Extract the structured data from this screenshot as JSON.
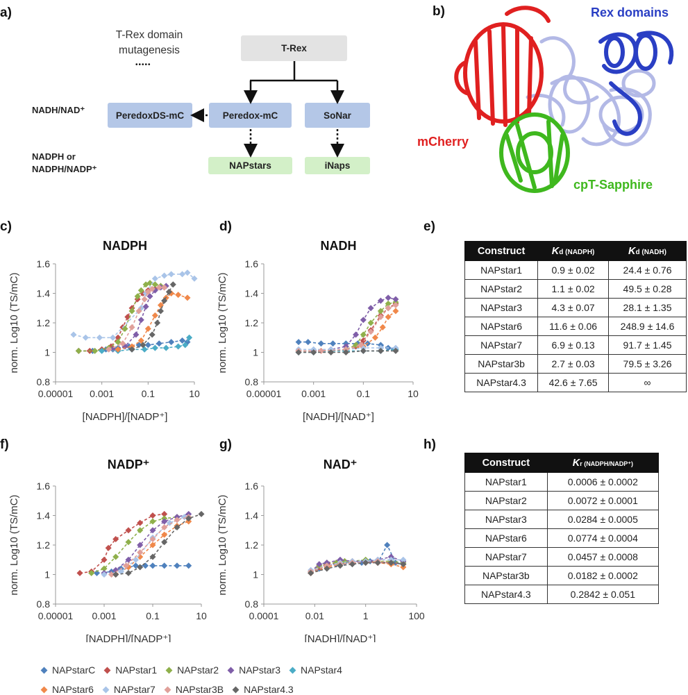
{
  "panels": {
    "a": "a)",
    "b": "b)",
    "c": "c)",
    "d": "d)",
    "e": "e)",
    "f": "f)",
    "g": "g)",
    "h": "h)"
  },
  "flow": {
    "mutagenesis_line1": "T-Rex domain",
    "mutagenesis_line2": "mutagenesis",
    "dots": "•••••",
    "trex": "T-Rex",
    "peredoxds": "PeredoxDS-mC",
    "peredox": "Peredox-mC",
    "sonar": "SoNar",
    "napstars": "NAPstars",
    "inaps": "iNaps",
    "label_nadh": "NADH/NAD⁺",
    "label_nadph_1": "NADPH or",
    "label_nadph_2": "NADPH/NADP⁺"
  },
  "structure": {
    "rex_domains": "Rex domains",
    "mcherry": "mCherry",
    "cpt_sapphire": "cpT-Sapphire",
    "colors": {
      "rex": "#2a3fc4",
      "rex_light": "#b3b9e6",
      "mcherry": "#e02020",
      "sapphire": "#3fb81e"
    }
  },
  "series_colors": {
    "NAPstarC": "#4f81bd",
    "NAPstar1": "#c0504d",
    "NAPstar2": "#8fb04b",
    "NAPstar3": "#7f5ea8",
    "NAPstar4": "#4bacc6",
    "NAPstar6": "#f0884a",
    "NAPstar7": "#a9c4e8",
    "NAPstar3B": "#e0a09a",
    "NAPstar4.3": "#666666"
  },
  "legend": {
    "row1": [
      "NAPstarC",
      "NAPstar1",
      "NAPstar2",
      "NAPstar3",
      "NAPstar4"
    ],
    "row2": [
      "NAPstar6",
      "NAPstar7",
      "NAPstar3B",
      "NAPstar4.3"
    ]
  },
  "chart_data": [
    {
      "id": "c",
      "type": "scatter",
      "title": "NADPH",
      "xlabel": "[NADPH]/[NADP⁺]",
      "ylabel": "norm. Log10 (TS/mC)",
      "xscale": "log",
      "xlim": [
        1e-05,
        10
      ],
      "ylim": [
        0.8,
        1.6
      ],
      "xticks": [
        "0.00001",
        "0.001",
        "0.1",
        "10"
      ],
      "yticks": [
        "0.8",
        "1",
        "1.2",
        "1.4",
        "1.6"
      ],
      "series": [
        {
          "name": "NAPstarC",
          "x": [
            0.0001,
            0.0004,
            0.0015,
            0.005,
            0.015,
            0.04,
            0.1,
            0.3,
            1,
            3,
            5
          ],
          "y": [
            1.01,
            1.01,
            1.02,
            1.03,
            1.04,
            1.05,
            1.05,
            1.06,
            1.07,
            1.08,
            1.07
          ]
        },
        {
          "name": "NAPstar1",
          "x": [
            0.0001,
            0.0003,
            0.001,
            0.0025,
            0.005,
            0.008,
            0.013,
            0.02,
            0.035,
            0.06,
            0.1,
            0.2,
            0.5
          ],
          "y": [
            1.01,
            1.01,
            1.02,
            1.04,
            1.1,
            1.17,
            1.24,
            1.3,
            1.36,
            1.4,
            1.42,
            1.43,
            1.44
          ]
        },
        {
          "name": "NAPstar2",
          "x": [
            0.0001,
            0.0005,
            0.002,
            0.005,
            0.01,
            0.02,
            0.035,
            0.05,
            0.08,
            0.12,
            0.2,
            0.35
          ],
          "y": [
            1.01,
            1.01,
            1.03,
            1.07,
            1.16,
            1.28,
            1.38,
            1.42,
            1.46,
            1.47,
            1.46,
            1.45
          ]
        },
        {
          "name": "NAPstar3",
          "x": [
            0.003,
            0.01,
            0.03,
            0.05,
            0.08,
            0.12,
            0.2,
            0.35,
            0.6
          ],
          "y": [
            1.02,
            1.04,
            1.12,
            1.22,
            1.31,
            1.38,
            1.42,
            1.44,
            1.45
          ]
        },
        {
          "name": "NAPstar4",
          "x": [
            0.001,
            0.005,
            0.02,
            0.07,
            0.2,
            0.6,
            2,
            4,
            6
          ],
          "y": [
            1.01,
            1.01,
            1.02,
            1.02,
            1.03,
            1.03,
            1.04,
            1.05,
            1.1
          ]
        },
        {
          "name": "NAPstar6",
          "x": [
            0.005,
            0.02,
            0.05,
            0.1,
            0.2,
            0.35,
            0.6,
            1,
            2,
            5
          ],
          "y": [
            1.02,
            1.04,
            1.08,
            1.16,
            1.25,
            1.32,
            1.37,
            1.4,
            1.39,
            1.37
          ]
        },
        {
          "name": "NAPstar7",
          "x": [
            6e-05,
            0.0002,
            0.0008,
            0.003,
            0.05,
            0.08,
            0.2,
            0.5,
            1,
            3,
            5,
            10
          ],
          "y": [
            1.12,
            1.1,
            1.1,
            1.1,
            1.3,
            1.4,
            1.5,
            1.52,
            1.53,
            1.53,
            1.54,
            1.5
          ]
        },
        {
          "name": "NAPstar3B",
          "x": [
            0.002,
            0.008,
            0.02,
            0.04,
            0.07,
            0.1,
            0.15,
            0.3,
            0.5
          ],
          "y": [
            1.02,
            1.06,
            1.17,
            1.28,
            1.36,
            1.41,
            1.43,
            1.44,
            1.44
          ]
        },
        {
          "name": "NAPstar4.3",
          "x": [
            0.02,
            0.06,
            0.15,
            0.25,
            0.35,
            0.5,
            0.8,
            1.2
          ],
          "y": [
            1.02,
            1.05,
            1.12,
            1.2,
            1.28,
            1.35,
            1.41,
            1.46
          ]
        }
      ]
    },
    {
      "id": "d",
      "type": "scatter",
      "title": "NADH",
      "xlabel": "[NADH]/[NAD⁺]",
      "ylabel": "norm. Log10 (TS/mC)",
      "xscale": "log",
      "xlim": [
        1e-05,
        10
      ],
      "ylim": [
        0.8,
        1.6
      ],
      "xticks": [
        "0.00001",
        "0.001",
        "0.1",
        "10"
      ],
      "yticks": [
        "0.8",
        "1",
        "1.2",
        "1.4",
        "1.6"
      ],
      "series": [
        {
          "name": "NAPstarC",
          "x": [
            0.00025,
            0.0006,
            0.002,
            0.006,
            0.02,
            0.06,
            0.15,
            0.5,
            1,
            2
          ],
          "y": [
            1.07,
            1.07,
            1.06,
            1.06,
            1.06,
            1.06,
            1.06,
            1.05,
            1.03,
            1.02
          ]
        },
        {
          "name": "NAPstar1",
          "x": [
            0.00025,
            0.001,
            0.005,
            0.02,
            0.05,
            0.1,
            0.2,
            0.5,
            1,
            2
          ],
          "y": [
            1.01,
            1.01,
            1.01,
            1.02,
            1.04,
            1.08,
            1.15,
            1.25,
            1.3,
            1.33
          ]
        },
        {
          "name": "NAPstar2",
          "x": [
            0.00025,
            0.001,
            0.005,
            0.02,
            0.05,
            0.1,
            0.2,
            0.5,
            1,
            2
          ],
          "y": [
            1.01,
            1.01,
            1.01,
            1.02,
            1.05,
            1.12,
            1.2,
            1.28,
            1.33,
            1.34
          ]
        },
        {
          "name": "NAPstar3",
          "x": [
            0.00025,
            0.001,
            0.005,
            0.02,
            0.05,
            0.1,
            0.2,
            0.5,
            1,
            2
          ],
          "y": [
            1.01,
            1.01,
            1.02,
            1.04,
            1.12,
            1.22,
            1.3,
            1.35,
            1.37,
            1.36
          ]
        },
        {
          "name": "NAPstar4",
          "x": [
            0.00025,
            0.001,
            0.005,
            0.02,
            0.1,
            0.5,
            2
          ],
          "y": [
            1.0,
            1.0,
            1.01,
            1.01,
            1.01,
            1.01,
            1.02
          ]
        },
        {
          "name": "NAPstar6",
          "x": [
            0.00025,
            0.002,
            0.02,
            0.1,
            0.3,
            0.6,
            1,
            2
          ],
          "y": [
            1.01,
            1.01,
            1.02,
            1.04,
            1.1,
            1.17,
            1.24,
            1.28
          ]
        },
        {
          "name": "NAPstar7",
          "x": [
            0.00025,
            0.001,
            0.005,
            0.02,
            0.1,
            0.5,
            2
          ],
          "y": [
            1.02,
            1.02,
            1.02,
            1.02,
            1.03,
            1.03,
            1.03
          ]
        },
        {
          "name": "NAPstar3B",
          "x": [
            0.00025,
            0.002,
            0.02,
            0.08,
            0.2,
            0.5,
            1,
            2
          ],
          "y": [
            1.01,
            1.01,
            1.02,
            1.05,
            1.14,
            1.24,
            1.3,
            1.32
          ]
        },
        {
          "name": "NAPstar4.3",
          "x": [
            0.00025,
            0.001,
            0.005,
            0.02,
            0.1,
            0.5,
            2
          ],
          "y": [
            1.0,
            1.0,
            1.0,
            1.0,
            1.01,
            1.01,
            1.01
          ]
        }
      ]
    },
    {
      "id": "f",
      "type": "scatter",
      "title": "NADP⁺",
      "xlabel": "[NADPH]/[NADP⁺]",
      "ylabel": "norm. Log10 (TS/mC)",
      "xscale": "log",
      "xlim": [
        1e-05,
        10
      ],
      "ylim": [
        0.8,
        1.6
      ],
      "xticks": [
        "0.00001",
        "0.001",
        "0.1",
        "10"
      ],
      "yticks": [
        "0.8",
        "1",
        "1.2",
        "1.4",
        "1.6"
      ],
      "series": [
        {
          "name": "NAPstarC",
          "x": [
            0.0005,
            0.002,
            0.005,
            0.01,
            0.02,
            0.05,
            0.1,
            0.3,
            1,
            3
          ],
          "y": [
            1.01,
            1.02,
            1.04,
            1.05,
            1.06,
            1.06,
            1.06,
            1.06,
            1.06,
            1.06
          ]
        },
        {
          "name": "NAPstar1",
          "x": [
            0.0001,
            0.0003,
            0.001,
            0.0015,
            0.003,
            0.01,
            0.03,
            0.1,
            0.3
          ],
          "y": [
            1.01,
            1.02,
            1.1,
            1.18,
            1.24,
            1.3,
            1.35,
            1.4,
            1.41
          ]
        },
        {
          "name": "NAPstar2",
          "x": [
            0.0003,
            0.001,
            0.003,
            0.01,
            0.03,
            0.1,
            0.3,
            1
          ],
          "y": [
            1.01,
            1.04,
            1.12,
            1.22,
            1.3,
            1.36,
            1.38,
            1.39
          ]
        },
        {
          "name": "NAPstar3",
          "x": [
            0.001,
            0.003,
            0.01,
            0.03,
            0.1,
            0.3,
            1,
            3
          ],
          "y": [
            1.01,
            1.03,
            1.1,
            1.2,
            1.3,
            1.36,
            1.39,
            1.41
          ]
        },
        {
          "name": "NAPstar6",
          "x": [
            0.003,
            0.01,
            0.03,
            0.1,
            0.3,
            1,
            3
          ],
          "y": [
            1.0,
            1.05,
            1.12,
            1.2,
            1.27,
            1.33,
            1.36
          ]
        },
        {
          "name": "NAPstar7",
          "x": [
            0.001,
            0.005,
            0.02,
            0.1,
            0.5,
            2
          ],
          "y": [
            1.0,
            1.02,
            1.1,
            1.25,
            1.35,
            1.39
          ]
        },
        {
          "name": "NAPstar3B",
          "x": [
            0.002,
            0.008,
            0.03,
            0.1,
            0.3,
            1,
            3
          ],
          "y": [
            1.0,
            1.06,
            1.15,
            1.24,
            1.32,
            1.37,
            1.39
          ]
        },
        {
          "name": "NAPstar4.3",
          "x": [
            0.003,
            0.01,
            0.03,
            0.1,
            0.3,
            1,
            3,
            10
          ],
          "y": [
            1.0,
            1.01,
            1.05,
            1.12,
            1.22,
            1.32,
            1.38,
            1.41
          ]
        }
      ]
    },
    {
      "id": "g",
      "type": "scatter",
      "title": "NAD⁺",
      "xlabel": "[NADH]/[NAD⁺]",
      "ylabel": "norm. Log10 (TS/mC)",
      "xscale": "log",
      "xlim": [
        0.0001,
        100
      ],
      "ylim": [
        0.8,
        1.6
      ],
      "xticks": [
        "0.0001",
        "0.01",
        "1",
        "100"
      ],
      "yticks": [
        "0.8",
        "1",
        "1.2",
        "1.4",
        "1.6"
      ],
      "series": [
        {
          "name": "NAPstarC",
          "x": [
            0.007,
            0.015,
            0.03,
            0.07,
            0.15,
            0.3,
            0.7,
            1.5,
            3,
            7,
            15,
            30
          ],
          "y": [
            1.01,
            1.04,
            1.06,
            1.07,
            1.08,
            1.08,
            1.08,
            1.09,
            1.08,
            1.2,
            1.08,
            1.07
          ]
        },
        {
          "name": "NAPstar1",
          "x": [
            0.007,
            0.015,
            0.03,
            0.07,
            0.15,
            0.3,
            1,
            3,
            10,
            30
          ],
          "y": [
            1.01,
            1.05,
            1.07,
            1.08,
            1.09,
            1.09,
            1.09,
            1.08,
            1.08,
            1.07
          ]
        },
        {
          "name": "NAPstar2",
          "x": [
            0.007,
            0.015,
            0.03,
            0.07,
            0.15,
            0.3,
            1,
            3,
            10,
            30
          ],
          "y": [
            1.02,
            1.06,
            1.08,
            1.08,
            1.09,
            1.09,
            1.1,
            1.09,
            1.09,
            1.08
          ]
        },
        {
          "name": "NAPstar3",
          "x": [
            0.007,
            0.015,
            0.03,
            0.1,
            0.3,
            1,
            3,
            10,
            30
          ],
          "y": [
            1.02,
            1.07,
            1.08,
            1.1,
            1.09,
            1.09,
            1.1,
            1.12,
            1.09
          ]
        },
        {
          "name": "NAPstar6",
          "x": [
            0.007,
            0.03,
            0.1,
            0.3,
            1,
            3,
            10,
            30
          ],
          "y": [
            1.01,
            1.05,
            1.07,
            1.08,
            1.08,
            1.08,
            1.07,
            1.05
          ]
        },
        {
          "name": "NAPstar7",
          "x": [
            0.007,
            0.03,
            0.1,
            0.3,
            1,
            3,
            10,
            30
          ],
          "y": [
            1.03,
            1.06,
            1.08,
            1.09,
            1.09,
            1.1,
            1.1,
            1.1
          ]
        },
        {
          "name": "NAPstar3B",
          "x": [
            0.007,
            0.03,
            0.1,
            0.3,
            1,
            3,
            10,
            30
          ],
          "y": [
            1.02,
            1.06,
            1.07,
            1.08,
            1.08,
            1.09,
            1.08,
            1.07
          ]
        },
        {
          "name": "NAPstar4.3",
          "x": [
            0.007,
            0.03,
            0.1,
            0.3,
            1,
            3,
            10,
            30
          ],
          "y": [
            1.01,
            1.04,
            1.06,
            1.07,
            1.08,
            1.08,
            1.08,
            1.07
          ]
        }
      ]
    },
    {
      "id": "e",
      "type": "table",
      "headers": [
        "Construct",
        "K",
        "d (NADPH)",
        "K",
        "d (NADH)"
      ],
      "rows": [
        [
          "NAPstar1",
          "0.9 ± 0.02",
          "24.4 ± 0.76"
        ],
        [
          "NAPstar2",
          "1.1 ± 0.02",
          "49.5 ± 0.28"
        ],
        [
          "NAPstar3",
          "4.3 ± 0.07",
          "28.1 ± 1.35"
        ],
        [
          "NAPstar6",
          "11.6 ± 0.06",
          "248.9 ± 14.6"
        ],
        [
          "NAPstar7",
          "6.9 ± 0.13",
          "91.7 ± 1.45"
        ],
        [
          "NAPstar3b",
          "2.7 ± 0.03",
          "79.5 ± 3.26"
        ],
        [
          "NAPstar4.3",
          "42.6 ± 7.65",
          "∞"
        ]
      ]
    },
    {
      "id": "h",
      "type": "table",
      "headers": [
        "Construct",
        "K",
        "r (NADPH/NADP⁺)"
      ],
      "rows": [
        [
          "NAPstar1",
          "0.0006 ± 0.0002"
        ],
        [
          "NAPstar2",
          "0.0072 ± 0.0001"
        ],
        [
          "NAPstar3",
          "0.0284 ± 0.0005"
        ],
        [
          "NAPstar6",
          "0.0774 ± 0.0004"
        ],
        [
          "NAPstar7",
          "0.0457 ± 0.0008"
        ],
        [
          "NAPstar3b",
          "0.0182 ± 0.0002"
        ],
        [
          "NAPstar4.3",
          "0.2842 ± 0.051"
        ]
      ]
    }
  ]
}
